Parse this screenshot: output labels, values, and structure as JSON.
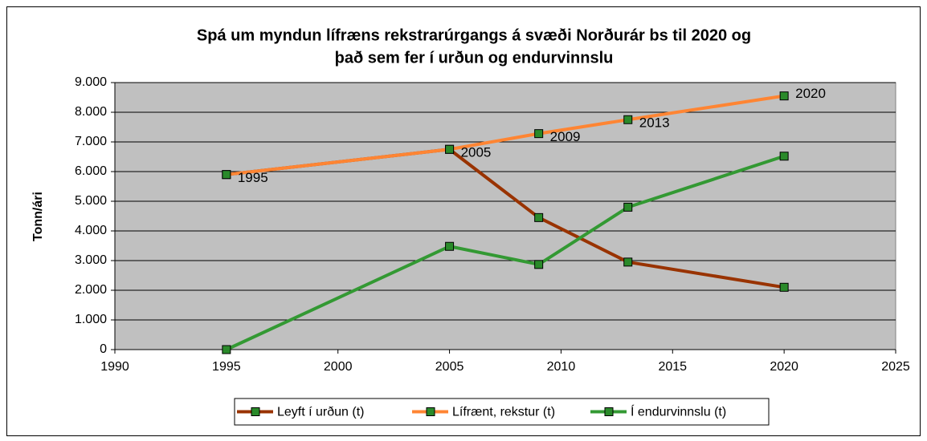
{
  "chart_data": {
    "type": "line",
    "title": [
      "Spá um myndun lífræns rekstrarúrgangs á svæði Norðurár bs til 2020 og",
      "það sem fer í urðun og endurvinnslu"
    ],
    "y_label": "Tonn/ári",
    "x": [
      1995,
      2005,
      2009,
      2013,
      2020
    ],
    "series": [
      {
        "name": "Leyft í urðun (t)",
        "color": "#993300",
        "values": [
          5900,
          6750,
          4450,
          2950,
          2100
        ]
      },
      {
        "name": "Lífrænt, rekstur (t)",
        "color": "#ff8533",
        "values": [
          5900,
          6750,
          7280,
          7750,
          8550
        ]
      },
      {
        "name": "Í endurvinnslu (t)",
        "color": "#339933",
        "values": [
          0,
          3480,
          2870,
          4800,
          6520
        ]
      }
    ],
    "marker_color": "#2a8a2a",
    "labeled_series": 1,
    "xlim": [
      1990,
      2025
    ],
    "xticks": [
      1990,
      1995,
      2000,
      2005,
      2010,
      2015,
      2020,
      2025
    ],
    "ylim": [
      0,
      9000
    ],
    "yticks": [
      0,
      {
        "value": 1000,
        "label": "1.000"
      },
      {
        "value": 2000,
        "label": "2.000"
      },
      {
        "value": 3000,
        "label": "3.000"
      },
      {
        "value": 4000,
        "label": "4.000"
      },
      {
        "value": 5000,
        "label": "5.000"
      },
      {
        "value": 6000,
        "label": "6.000"
      },
      {
        "value": 7000,
        "label": "7.000"
      },
      {
        "value": 8000,
        "label": "8.000"
      },
      {
        "value": 9000,
        "label": "9.000"
      }
    ],
    "grid": true,
    "legend": "bottom"
  }
}
